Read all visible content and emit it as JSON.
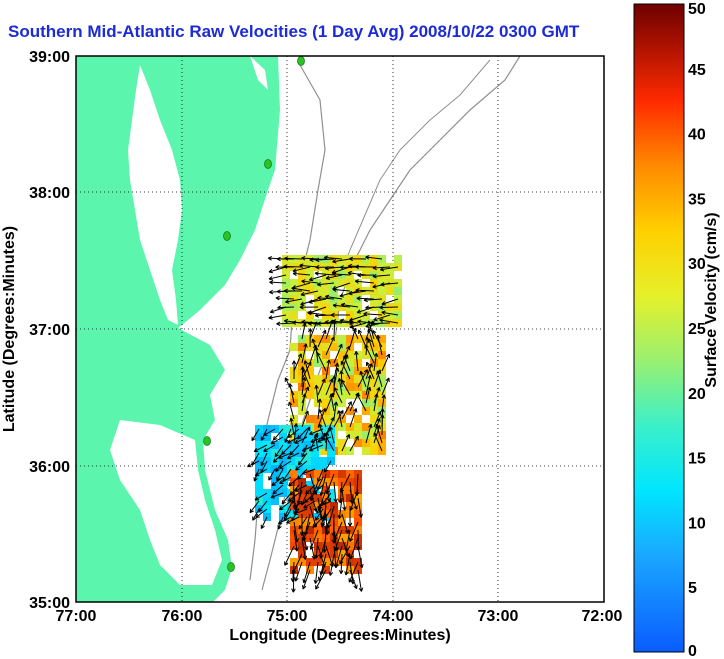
{
  "title": "Southern Mid-Atlantic Raw Velocities (1 Day Avg) 2008/10/22 0300 GMT",
  "xlabel": "Longitude (Degrees:Minutes)",
  "ylabel": "Latitude (Degrees:Minutes)",
  "xticks": [
    "77:00",
    "76:00",
    "75:00",
    "74:00",
    "73:00",
    "72:00"
  ],
  "yticks": [
    "39:00",
    "38:00",
    "37:00",
    "36:00",
    "35:00"
  ],
  "colorbar": {
    "label": "Surface Velocity (cm/s)",
    "ticks": [
      "0",
      "5",
      "10",
      "15",
      "20",
      "25",
      "30",
      "35",
      "40",
      "45",
      "50"
    ],
    "range": [
      0,
      50
    ]
  },
  "colors": {
    "land": "#5cf5ae",
    "water": "#ffffff",
    "grid": "#000000",
    "isobath": "#909090",
    "station": "#27c426",
    "title": "#1c2bd6"
  },
  "stations": [
    "station"
  ]
}
